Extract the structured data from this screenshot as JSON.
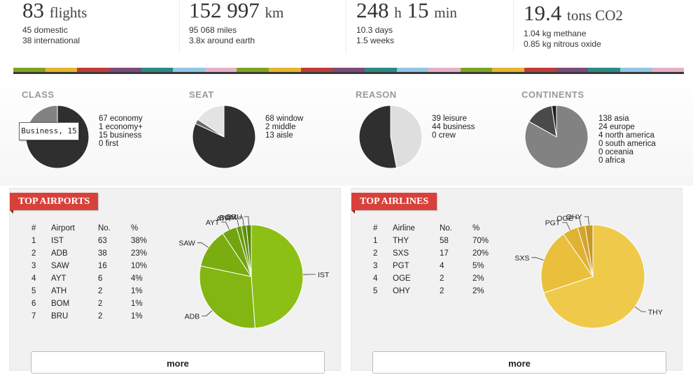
{
  "stats": [
    {
      "value": "83",
      "unit": "flights",
      "sub1": "45 domestic",
      "sub2": "38 international"
    },
    {
      "value": "152 997",
      "unit": "km",
      "sub1": "95 068 miles",
      "sub2": "3.8x around earth"
    },
    {
      "value": "248",
      "unit": "h",
      "value2": "15",
      "unit2": "min",
      "sub1": "10.3 days",
      "sub2": "1.5 weeks"
    },
    {
      "value": "19.4",
      "unit": "tons CO2",
      "sub1": "1.04 kg methane",
      "sub2": "0.85 kg nitrous oxide"
    }
  ],
  "colorbar": [
    "#7fa51f",
    "#e7b52c",
    "#c23b3b",
    "#7b4a7a",
    "#2a8a84",
    "#8fc6e3",
    "#e8b0c8",
    "#7fa51f",
    "#e7b52c",
    "#c23b3b",
    "#7b4a7a",
    "#2a8a84",
    "#8fc6e3",
    "#e8b0c8",
    "#7fa51f",
    "#e7b52c",
    "#c23b3b",
    "#7b4a7a",
    "#2a8a84",
    "#8fc6e3",
    "#e8b0c8"
  ],
  "groups": [
    {
      "title": "CLASS",
      "items": [
        "67 economy",
        "1 economy+",
        "15 business",
        "0 first"
      ]
    },
    {
      "title": "SEAT",
      "items": [
        "68 window",
        "2 middle",
        "13 aisle"
      ]
    },
    {
      "title": "REASON",
      "items": [
        "39 leisure",
        "44 business",
        "0 crew"
      ]
    },
    {
      "title": "CONTINENTS",
      "items": [
        "138 asia",
        "24 europe",
        "4 north america",
        "0 south america",
        "0 oceania",
        "0 africa"
      ]
    }
  ],
  "tooltip": "Business, 15",
  "airports": {
    "title": "TOP AIRPORTS",
    "headers": [
      "#",
      "Airport",
      "No.",
      "%"
    ],
    "rows": [
      [
        "1",
        "IST",
        "63",
        "38%"
      ],
      [
        "2",
        "ADB",
        "38",
        "23%"
      ],
      [
        "3",
        "SAW",
        "16",
        "10%"
      ],
      [
        "4",
        "AYT",
        "6",
        "4%"
      ],
      [
        "5",
        "ATH",
        "2",
        "1%"
      ],
      [
        "6",
        "BOM",
        "2",
        "1%"
      ],
      [
        "7",
        "BRU",
        "2",
        "1%"
      ]
    ],
    "more": "more"
  },
  "airlines": {
    "title": "TOP AIRLINES",
    "headers": [
      "#",
      "Airline",
      "No.",
      "%"
    ],
    "rows": [
      [
        "1",
        "THY",
        "58",
        "70%"
      ],
      [
        "2",
        "SXS",
        "17",
        "20%"
      ],
      [
        "3",
        "PGT",
        "4",
        "5%"
      ],
      [
        "4",
        "OGE",
        "2",
        "2%"
      ],
      [
        "5",
        "OHY",
        "2",
        "2%"
      ]
    ],
    "more": "more"
  },
  "chart_data": [
    {
      "type": "pie",
      "title": "CLASS",
      "labels": [
        "economy",
        "economy+",
        "business",
        "first"
      ],
      "values": [
        67,
        1,
        15,
        0
      ]
    },
    {
      "type": "pie",
      "title": "SEAT",
      "labels": [
        "window",
        "middle",
        "aisle"
      ],
      "values": [
        68,
        2,
        13
      ]
    },
    {
      "type": "pie",
      "title": "REASON",
      "labels": [
        "leisure",
        "business",
        "crew"
      ],
      "values": [
        39,
        44,
        0
      ]
    },
    {
      "type": "pie",
      "title": "CONTINENTS",
      "labels": [
        "asia",
        "europe",
        "north america",
        "south america",
        "oceania",
        "africa"
      ],
      "values": [
        138,
        24,
        4,
        0,
        0,
        0
      ]
    },
    {
      "type": "pie",
      "title": "TOP AIRPORTS",
      "labels": [
        "IST",
        "ADB",
        "SAW",
        "AYT",
        "ATH",
        "BOM",
        "BRU"
      ],
      "values": [
        63,
        38,
        16,
        6,
        2,
        2,
        2
      ]
    },
    {
      "type": "pie",
      "title": "TOP AIRLINES",
      "labels": [
        "THY",
        "SXS",
        "PGT",
        "OGE",
        "OHY"
      ],
      "values": [
        58,
        17,
        4,
        2,
        2
      ]
    }
  ]
}
